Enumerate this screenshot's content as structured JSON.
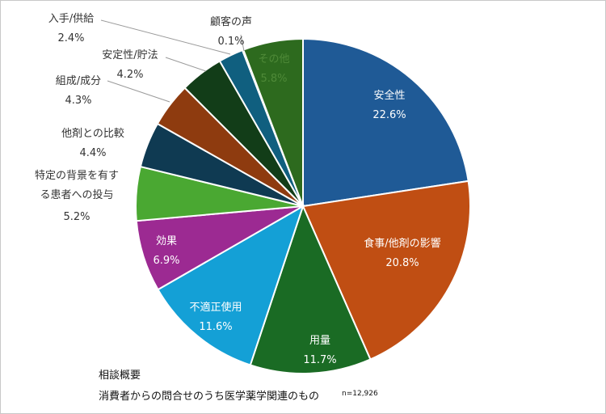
{
  "chart_data": {
    "type": "pie",
    "slices": [
      {
        "label": "安全性",
        "value_label": "22.6%",
        "value": 22.6,
        "color": "#1f5a96",
        "label_pos": "inside"
      },
      {
        "label": "食事/他剤の影響",
        "value_label": "20.8%",
        "value": 20.8,
        "color": "#c04e13",
        "label_pos": "inside"
      },
      {
        "label": "用量",
        "value_label": "11.7%",
        "value": 11.7,
        "color": "#1a6b24",
        "label_pos": "inside"
      },
      {
        "label": "不適正使用",
        "value_label": "11.6%",
        "value": 11.6,
        "color": "#14a0d6",
        "label_pos": "inside"
      },
      {
        "label": "効果",
        "value_label": "6.9%",
        "value": 6.9,
        "color": "#9c2a92",
        "label_pos": "inside"
      },
      {
        "label": "特定の背景を有する患者への投与",
        "label_lines": [
          "特定の背景を有す",
          "る患者への投与"
        ],
        "value_label": "5.2%",
        "value": 5.2,
        "color": "#4aa832",
        "label_pos": "outside"
      },
      {
        "label": "他剤との比較",
        "value_label": "4.4%",
        "value": 4.4,
        "color": "#0f3a52",
        "label_pos": "outside"
      },
      {
        "label": "組成/成分",
        "value_label": "4.3%",
        "value": 4.3,
        "color": "#8e3b0f",
        "label_pos": "outside"
      },
      {
        "label": "安定性/貯法",
        "value_label": "4.2%",
        "value": 4.2,
        "color": "#123d18",
        "label_pos": "outside"
      },
      {
        "label": "入手/供給",
        "value_label": "2.4%",
        "value": 2.4,
        "color": "#105f7f",
        "label_pos": "outside"
      },
      {
        "label": "顧客の声",
        "value_label": "0.1%",
        "value": 0.1,
        "color": "#ffffff",
        "label_pos": "outside"
      },
      {
        "label": "その他",
        "value_label": "5.8%",
        "value": 5.8,
        "color": "#2d6a1e",
        "label_pos": "inside"
      }
    ]
  },
  "notes": {
    "title": "相談概要",
    "subtitle": "消費者からの問合せのうち医学薬学関連のもの",
    "n": "n=12,926"
  }
}
